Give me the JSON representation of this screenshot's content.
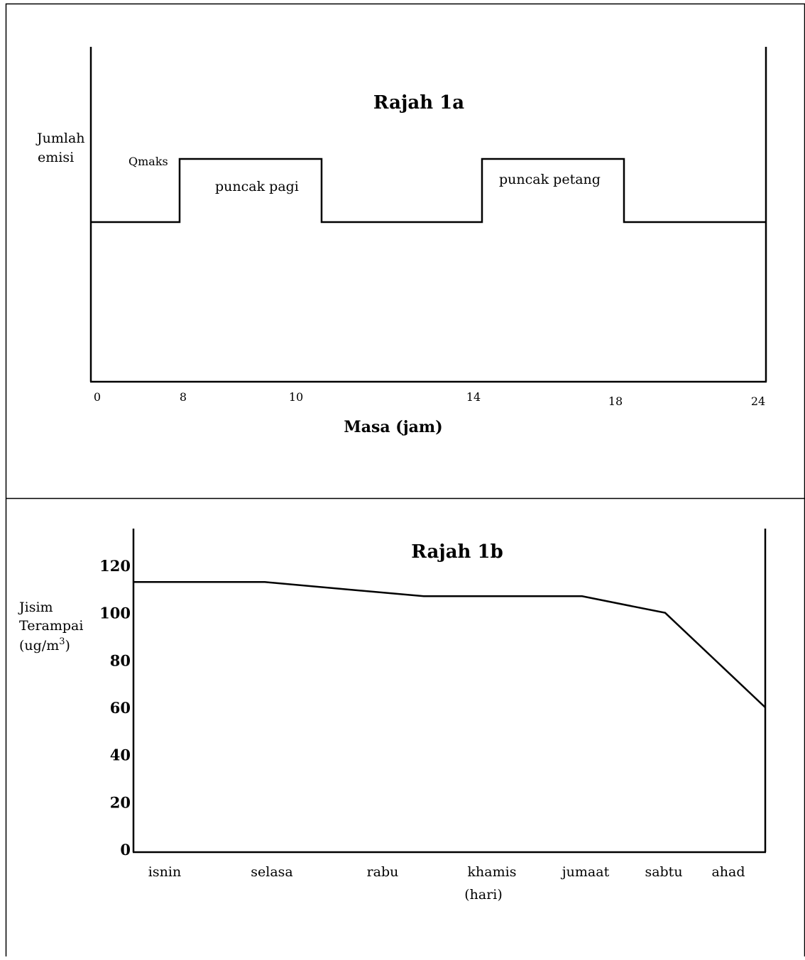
{
  "chart_data": [
    {
      "type": "line",
      "title": "Rajah 1a",
      "xlabel": "Masa (jam)",
      "ylabel_lines": [
        "Jumlah",
        "emisi"
      ],
      "x_ticks": [
        "0",
        "8",
        "10",
        "14",
        "18",
        "24"
      ],
      "ymax_label": "Qmaks",
      "annotations": [
        "puncak pagi",
        "puncak petang"
      ],
      "series": [
        {
          "x": [
            0,
            8,
            8,
            10,
            10,
            14,
            14,
            18,
            18,
            24
          ],
          "y": [
            1,
            1,
            2,
            2,
            1,
            1,
            2,
            2,
            1,
            1
          ]
        }
      ],
      "y_levels": {
        "base": 1,
        "peak": 2
      }
    },
    {
      "type": "line",
      "title": "Rajah 1b",
      "xlabel": "(hari)",
      "ylabel_lines": [
        "Jisim",
        "Terampai",
        "(ug/m",
        "3",
        ")"
      ],
      "categories": [
        "isnin",
        "selasa",
        "rabu",
        "khamis",
        "jumaat",
        "sabtu",
        "ahad"
      ],
      "y_ticks": [
        "0",
        "20",
        "40",
        "60",
        "80",
        "100",
        "120"
      ],
      "ylim": [
        0,
        120
      ],
      "series": [
        {
          "x": [
            "isnin",
            "selasa",
            "rabu",
            "jumaat",
            "sabtu",
            "ahad"
          ],
          "values": [
            113,
            113,
            107,
            107,
            100,
            60
          ]
        }
      ]
    }
  ]
}
